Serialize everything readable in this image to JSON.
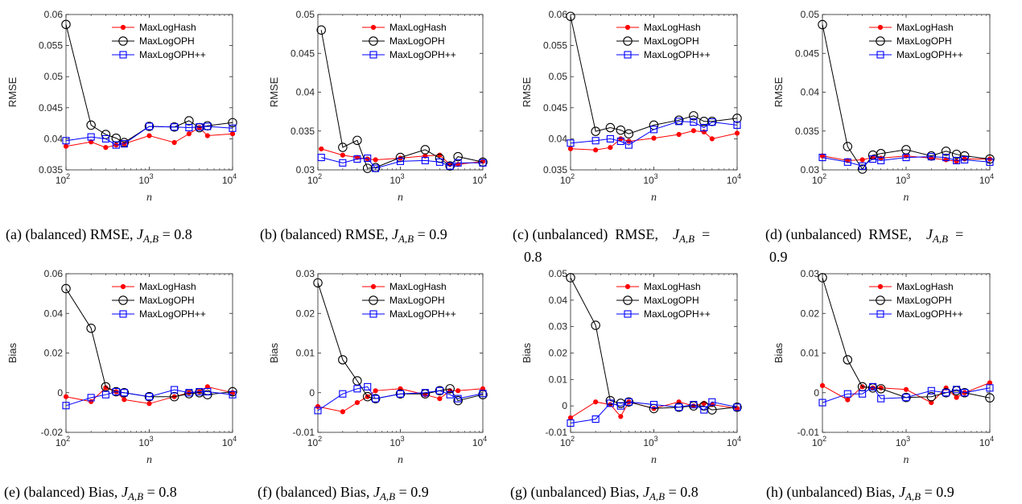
{
  "legend": {
    "maxloghash": "MaxLogHash",
    "maxlogoph": "MaxLogOPH",
    "maxlogophpp": "MaxLogOPH++"
  },
  "colors": {
    "maxloghash": "#ff0000",
    "maxlogoph": "#000000",
    "maxlogophpp": "#0000ff"
  },
  "x_label": "n",
  "chart_data": [
    {
      "type": "line",
      "xscale": "log",
      "x": [
        100,
        200,
        300,
        400,
        500,
        1000,
        2000,
        3000,
        4000,
        5000,
        10000
      ],
      "xlim": [
        100,
        10000
      ],
      "ylim": [
        0.035,
        0.06
      ],
      "ylabel": "RMSE",
      "yticks": [
        0.035,
        0.04,
        0.045,
        0.05,
        0.055,
        0.06
      ],
      "ytick_labels": [
        "0.035",
        "0.04",
        "0.045",
        "0.05",
        "0.055",
        "0.06"
      ],
      "caption": "(a) (balanced) RMSE, J_{A,B} = 0.8",
      "series": [
        {
          "name": "MaxLogHash",
          "values": [
            0.0388,
            0.0395,
            0.0386,
            0.039,
            0.0392,
            0.0405,
            0.0394,
            0.0408,
            0.0418,
            0.0405,
            0.0408
          ]
        },
        {
          "name": "MaxLogOPH",
          "values": [
            0.0584,
            0.0422,
            0.0407,
            0.0401,
            0.0394,
            0.042,
            0.0419,
            0.0429,
            0.0418,
            0.0421,
            0.0426
          ]
        },
        {
          "name": "MaxLogOPH++",
          "values": [
            0.0397,
            0.0403,
            0.04,
            0.039,
            0.0392,
            0.042,
            0.0419,
            0.0418,
            0.0419,
            0.042,
            0.0417
          ]
        }
      ]
    },
    {
      "type": "line",
      "xscale": "log",
      "x": [
        110,
        200,
        300,
        400,
        500,
        1000,
        2000,
        3000,
        4000,
        5000,
        10000
      ],
      "xlim": [
        100,
        10000
      ],
      "ylim": [
        0.03,
        0.05
      ],
      "ylabel": "RMSE",
      "yticks": [
        0.03,
        0.035,
        0.04,
        0.045,
        0.05
      ],
      "ytick_labels": [
        "0.03",
        "0.035",
        "0.04",
        "0.045",
        "0.05"
      ],
      "caption": "(b) (balanced) RMSE, J_{A,B} = 0.9",
      "series": [
        {
          "name": "MaxLogHash",
          "values": [
            0.0327,
            0.0319,
            0.0316,
            0.0314,
            0.0313,
            0.0315,
            0.0318,
            0.0319,
            0.0307,
            0.0307,
            0.0311
          ]
        },
        {
          "name": "MaxLogOPH",
          "values": [
            0.048,
            0.0329,
            0.0338,
            0.0302,
            0.0303,
            0.0316,
            0.0326,
            0.0315,
            0.0305,
            0.0317,
            0.031
          ]
        },
        {
          "name": "MaxLogOPH++",
          "values": [
            0.0316,
            0.0309,
            0.0314,
            0.0315,
            0.0302,
            0.0311,
            0.0312,
            0.031,
            0.0305,
            0.0309,
            0.0309
          ]
        }
      ]
    },
    {
      "type": "line",
      "xscale": "log",
      "x": [
        100,
        200,
        300,
        400,
        500,
        1000,
        2000,
        3000,
        4000,
        5000,
        10000
      ],
      "xlim": [
        100,
        10000
      ],
      "ylim": [
        0.035,
        0.06
      ],
      "ylabel": "RMSE",
      "yticks": [
        0.035,
        0.04,
        0.045,
        0.05,
        0.055,
        0.06
      ],
      "ytick_labels": [
        "0.035",
        "0.04",
        "0.045",
        "0.05",
        "0.055",
        "0.06"
      ],
      "caption": "(c) (unbalanced) RMSE, J_{A,B} = 0.8",
      "series": [
        {
          "name": "MaxLogHash",
          "values": [
            0.0384,
            0.0382,
            0.0386,
            0.04,
            0.0396,
            0.0401,
            0.0407,
            0.0413,
            0.0411,
            0.04,
            0.0409
          ]
        },
        {
          "name": "MaxLogOPH",
          "values": [
            0.0597,
            0.0412,
            0.0418,
            0.0414,
            0.0408,
            0.0422,
            0.043,
            0.0437,
            0.0428,
            0.0428,
            0.0433
          ]
        },
        {
          "name": "MaxLogOPH++",
          "values": [
            0.0393,
            0.0397,
            0.04,
            0.0396,
            0.039,
            0.0415,
            0.0428,
            0.0427,
            0.0418,
            0.0427,
            0.0422
          ]
        }
      ]
    },
    {
      "type": "line",
      "xscale": "log",
      "x": [
        100,
        200,
        300,
        400,
        500,
        1000,
        2000,
        3000,
        4000,
        5000,
        10000
      ],
      "xlim": [
        100,
        10000
      ],
      "ylim": [
        0.03,
        0.05
      ],
      "ylabel": "RMSE",
      "yticks": [
        0.03,
        0.035,
        0.04,
        0.045,
        0.05
      ],
      "ytick_labels": [
        "0.03",
        "0.035",
        "0.04",
        "0.045",
        "0.05"
      ],
      "caption": "(d) (unbalanced) RMSE, J_{A,B} = 0.9",
      "series": [
        {
          "name": "MaxLogHash",
          "values": [
            0.0318,
            0.0312,
            0.0313,
            0.0316,
            0.0315,
            0.0318,
            0.0315,
            0.0313,
            0.0311,
            0.0314,
            0.0314
          ]
        },
        {
          "name": "MaxLogOPH",
          "values": [
            0.0487,
            0.033,
            0.0301,
            0.0319,
            0.0321,
            0.0326,
            0.0318,
            0.0324,
            0.032,
            0.0318,
            0.0314
          ]
        },
        {
          "name": "MaxLogOPH++",
          "values": [
            0.0316,
            0.031,
            0.0305,
            0.0314,
            0.0312,
            0.0316,
            0.0317,
            0.0316,
            0.0312,
            0.0313,
            0.031
          ]
        }
      ]
    },
    {
      "type": "line",
      "xscale": "log",
      "x": [
        100,
        200,
        300,
        400,
        500,
        1000,
        2000,
        3000,
        4000,
        5000,
        10000
      ],
      "xlim": [
        100,
        10000
      ],
      "ylim": [
        -0.02,
        0.06
      ],
      "ylabel": "Bias",
      "yticks": [
        -0.02,
        0,
        0.02,
        0.04,
        0.06
      ],
      "ytick_labels": [
        "-0.02",
        "0",
        "0.02",
        "0.04",
        "0.06"
      ],
      "caption": "(e) (balanced) Bias, J_{A,B} = 0.8",
      "series": [
        {
          "name": "MaxLogHash",
          "values": [
            -0.002,
            -0.0045,
            0.0025,
            0.0005,
            -0.0035,
            -0.0055,
            -0.002,
            0.0,
            0.0005,
            0.003,
            0.0
          ]
        },
        {
          "name": "MaxLogOPH",
          "values": [
            0.0525,
            0.0325,
            0.003,
            0.0005,
            0.0,
            -0.002,
            -0.002,
            -0.0005,
            0.0,
            -0.001,
            0.0005
          ]
        },
        {
          "name": "MaxLogOPH++",
          "values": [
            -0.0065,
            -0.0025,
            -0.001,
            0.0005,
            0.0,
            -0.002,
            0.0015,
            0.0,
            0.0005,
            0.0005,
            -0.001
          ]
        }
      ]
    },
    {
      "type": "line",
      "xscale": "log",
      "x": [
        100,
        200,
        300,
        400,
        500,
        1000,
        2000,
        3000,
        4000,
        5000,
        10000
      ],
      "xlim": [
        100,
        10000
      ],
      "ylim": [
        -0.01,
        0.03
      ],
      "ylabel": "Bias",
      "yticks": [
        -0.01,
        0,
        0.01,
        0.02,
        0.03
      ],
      "ytick_labels": [
        "-0.01",
        "0",
        "0.01",
        "0.02",
        "0.03"
      ],
      "caption": "(f) (balanced) Bias, J_{A,B} = 0.9",
      "series": [
        {
          "name": "MaxLogHash",
          "values": [
            -0.0035,
            -0.0048,
            -0.0025,
            -0.001,
            0.0005,
            0.001,
            -0.0005,
            -0.0015,
            0.0005,
            0.0005,
            0.001
          ]
        },
        {
          "name": "MaxLogOPH",
          "values": [
            0.0277,
            0.0083,
            0.003,
            -0.001,
            -0.0015,
            -0.0003,
            -0.0003,
            0.0005,
            0.001,
            -0.002,
            -0.0005
          ]
        },
        {
          "name": "MaxLogOPH++",
          "values": [
            -0.0045,
            -0.0003,
            0.001,
            0.0015,
            -0.0015,
            -0.0003,
            0.0,
            0.0005,
            -0.0005,
            -0.0015,
            -0.0002
          ]
        }
      ]
    },
    {
      "type": "line",
      "xscale": "log",
      "x": [
        100,
        200,
        300,
        400,
        500,
        1000,
        2000,
        3000,
        4000,
        5000,
        10000
      ],
      "xlim": [
        100,
        10000
      ],
      "ylim": [
        -0.01,
        0.05
      ],
      "ylabel": "Bias",
      "yticks": [
        -0.01,
        0,
        0.01,
        0.02,
        0.03,
        0.04,
        0.05
      ],
      "ytick_labels": [
        "-0.01",
        "0",
        "0.01",
        "0.02",
        "0.03",
        "0.04",
        "0.05"
      ],
      "caption": "(g) (unbalanced) Bias, J_{A,B} = 0.8",
      "series": [
        {
          "name": "MaxLogHash",
          "values": [
            -0.0045,
            0.0015,
            0.0005,
            -0.004,
            0.0015,
            -0.001,
            0.0015,
            0.0,
            0.001,
            0.0005,
            -0.001
          ]
        },
        {
          "name": "MaxLogOPH",
          "values": [
            0.0485,
            0.0305,
            0.002,
            0.001,
            0.0015,
            -0.001,
            -0.0005,
            0.0,
            0.0,
            -0.0015,
            -0.0005
          ]
        },
        {
          "name": "MaxLogOPH++",
          "values": [
            -0.0065,
            -0.005,
            0.001,
            0.0,
            0.0015,
            0.0005,
            -0.0005,
            0.0005,
            -0.0015,
            0.0015,
            -0.0005
          ]
        }
      ]
    },
    {
      "type": "line",
      "xscale": "log",
      "x": [
        100,
        200,
        300,
        400,
        500,
        1000,
        2000,
        3000,
        4000,
        5000,
        10000
      ],
      "xlim": [
        100,
        10000
      ],
      "ylim": [
        -0.01,
        0.03
      ],
      "ylabel": "Bias",
      "yticks": [
        -0.01,
        0,
        0.01,
        0.02,
        0.03
      ],
      "ytick_labels": [
        "-0.01",
        "0",
        "0.01",
        "0.02",
        "0.03"
      ],
      "caption": "(h) (unbalanced) Bias, J_{A,B} = 0.9",
      "series": [
        {
          "name": "MaxLogHash",
          "values": [
            0.0018,
            -0.0018,
            0.0015,
            0.0012,
            0.0012,
            0.0008,
            -0.0025,
            0.0012,
            -0.0012,
            0.0,
            0.0025
          ]
        },
        {
          "name": "MaxLogOPH",
          "values": [
            0.029,
            0.0083,
            0.0015,
            0.0012,
            0.001,
            -0.0012,
            -0.001,
            0.0,
            0.0005,
            0.0,
            -0.0013
          ]
        },
        {
          "name": "MaxLogOPH++",
          "values": [
            -0.0025,
            -0.0003,
            -0.0003,
            0.0015,
            -0.0015,
            -0.0012,
            0.0005,
            0.0,
            0.0008,
            0.0,
            0.0012
          ]
        }
      ]
    }
  ]
}
